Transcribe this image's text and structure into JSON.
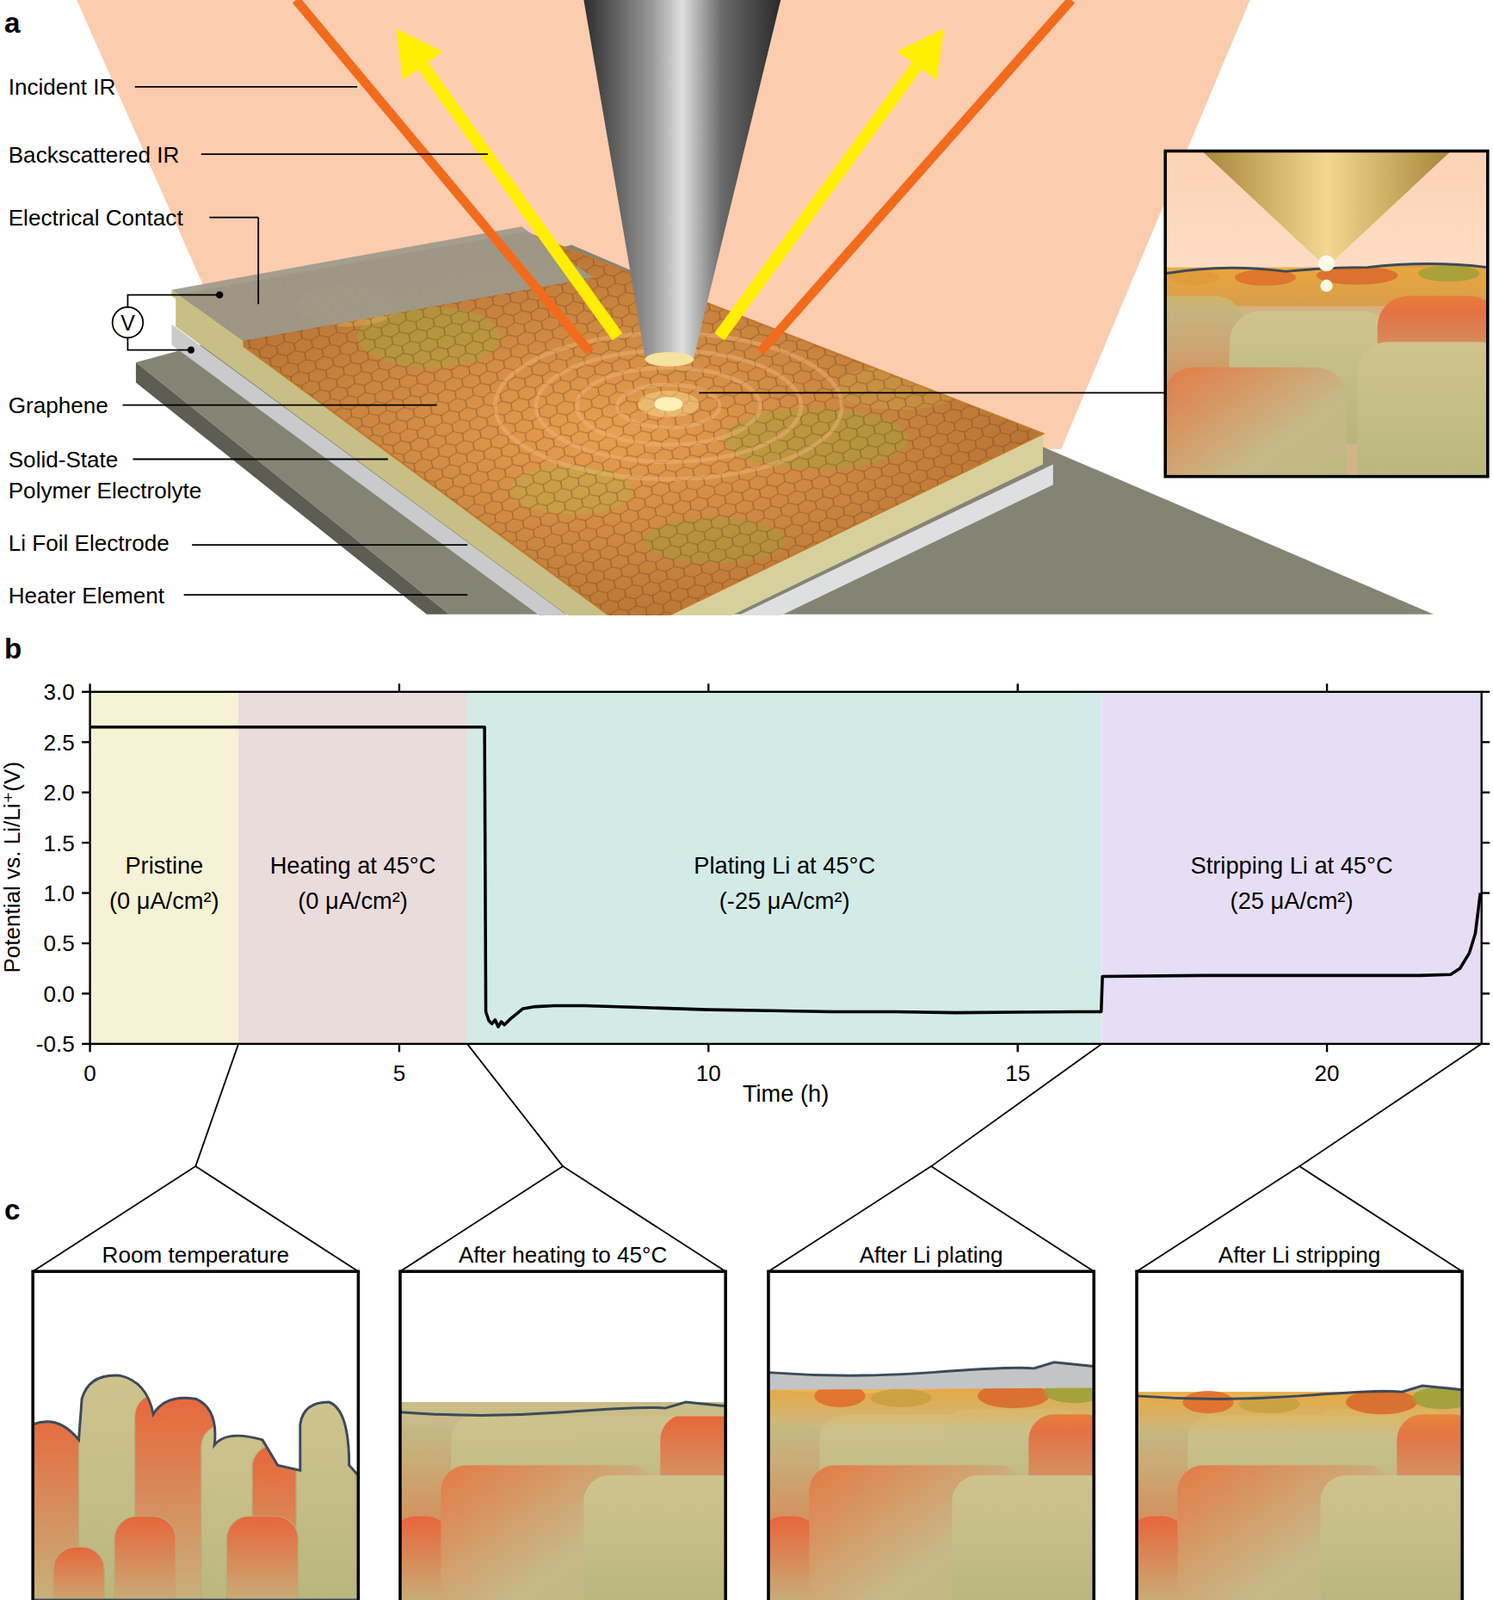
{
  "panel_a": {
    "letter": "a",
    "labels": [
      [
        "Incident IR"
      ],
      [
        "Backscattered IR"
      ],
      [
        "Electrical Contact"
      ],
      [
        "Graphene"
      ],
      [
        "Solid-State",
        "Polymer Electrolyte"
      ],
      [
        "Li Foil Electrode"
      ],
      [
        "Heater Element"
      ]
    ],
    "voltmeter": "V"
  },
  "panel_b": {
    "letter": "b"
  },
  "chart_data": {
    "type": "line",
    "xlabel": "Time (h)",
    "ylabel": "Potential vs. Li/Li⁺(V)",
    "color": "#000000",
    "x": [
      0,
      6.38,
      6.4,
      6.45,
      6.5,
      6.55,
      6.6,
      6.65,
      6.7,
      6.8,
      6.9,
      7.0,
      7.2,
      7.5,
      8,
      9,
      10,
      11,
      12,
      13,
      14,
      15,
      16,
      16.35,
      16.37,
      18,
      20,
      21.5,
      22,
      22.15,
      22.3,
      22.4,
      22.48
    ],
    "values": [
      2.65,
      2.65,
      -0.18,
      -0.27,
      -0.3,
      -0.26,
      -0.33,
      -0.28,
      -0.31,
      -0.25,
      -0.2,
      -0.15,
      -0.13,
      -0.12,
      -0.12,
      -0.14,
      -0.16,
      -0.17,
      -0.18,
      -0.18,
      -0.19,
      -0.185,
      -0.18,
      -0.18,
      0.17,
      0.18,
      0.18,
      0.18,
      0.19,
      0.25,
      0.4,
      0.6,
      1.0
    ],
    "xlim": [
      0,
      22.5
    ],
    "ylim": [
      -0.5,
      3.0
    ],
    "xticks": [
      0,
      5,
      10,
      15,
      20
    ],
    "yticks": [
      -0.5,
      {
        "value": 0,
        "label": "0.0"
      },
      0.5,
      {
        "value": 1,
        "label": "1.0"
      },
      1.5,
      {
        "value": 2,
        "label": "2.0"
      },
      2.5,
      {
        "value": 3,
        "label": "3.0"
      }
    ],
    "regions": [
      {
        "label": "Pristine",
        "sublabel": "(0 μA/cm²)",
        "start": 0,
        "end": 2.4,
        "color": "#f6f2d5"
      },
      {
        "label": "Heating at 45°C",
        "sublabel": "(0 μA/cm²)",
        "start": 2.4,
        "end": 6.1,
        "color": "#eadcdb"
      },
      {
        "label": "Plating Li at 45°C",
        "sublabel": "(-25 μA/cm²)",
        "start": 6.1,
        "end": 16.36,
        "color": "#d3ebe6"
      },
      {
        "label": "Stripping Li at 45°C",
        "sublabel": "(25 μA/cm²)",
        "start": 16.36,
        "end": 22.5,
        "color": "#e7def6"
      }
    ]
  },
  "panel_c": {
    "letter": "c",
    "titles": [
      "Room temperature",
      "After heating to 45°C",
      "After Li plating",
      "After Li stripping"
    ]
  }
}
